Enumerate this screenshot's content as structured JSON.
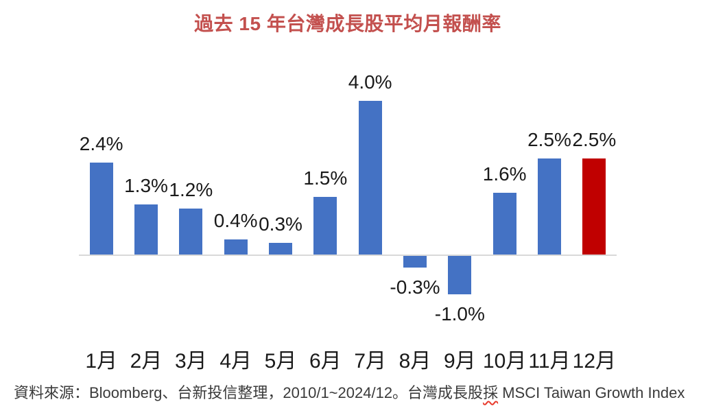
{
  "title": "過去 15 年台灣成長股平均月報酬率",
  "footer": {
    "part1": "資料來源：Bloomberg、台新投信整理，2010/1~2024/12。台灣成長股",
    "misspelled_word": "採",
    "part2": " MSCI Taiwan Growth Index"
  },
  "colors": {
    "title_text": "#c3504e",
    "bar_blue": "#4472c4",
    "bar_red": "#c00000",
    "axis_line": "#d9d9d9",
    "label_text": "#1a1a1a",
    "footer_text": "#3a3a3a",
    "spellcheck_squiggle": "#e8392b"
  },
  "chart_data": {
    "type": "bar",
    "title": "過去 15 年台灣成長股平均月報酬率",
    "categories": [
      "1月",
      "2月",
      "3月",
      "4月",
      "5月",
      "6月",
      "7月",
      "8月",
      "9月",
      "10月",
      "11月",
      "12月"
    ],
    "values": [
      2.4,
      1.3,
      1.2,
      0.4,
      0.3,
      1.5,
      4.0,
      -0.3,
      -1.0,
      1.6,
      2.5,
      2.5
    ],
    "data_labels": [
      "2.4%",
      "1.3%",
      "1.2%",
      "0.4%",
      "0.3%",
      "1.5%",
      "4.0%",
      "-0.3%",
      "-1.0%",
      "1.6%",
      "2.5%",
      "2.5%"
    ],
    "series_name": "平均月報酬率",
    "bar_color": "#4472c4",
    "highlight_index": 11,
    "highlight_color": "#c00000",
    "xlabel": "",
    "ylabel": "",
    "ylim": [
      -1.0,
      4.0
    ],
    "grid": false,
    "legend": false,
    "y_axis_visible": false,
    "source_note": "資料來源：Bloomberg、台新投信整理，2010/1~2024/12。台灣成長股採 MSCI Taiwan Growth Index"
  }
}
